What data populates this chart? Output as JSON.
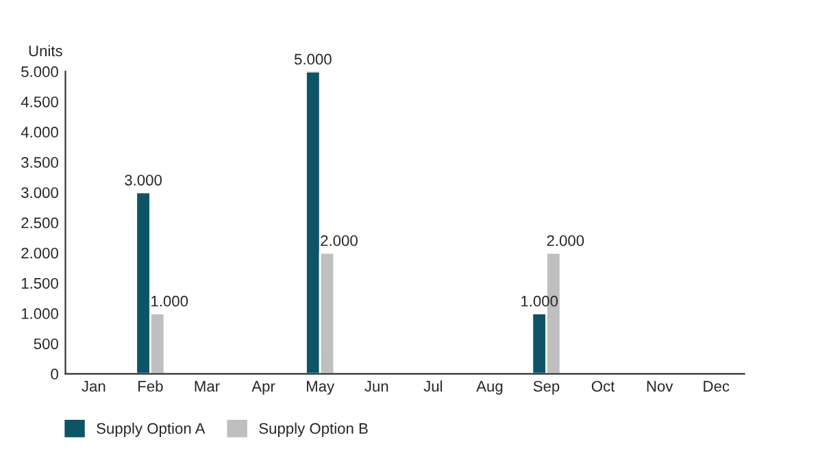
{
  "chart_data": {
    "type": "bar",
    "ylabel": "Units",
    "categories": [
      "Jan",
      "Feb",
      "Mar",
      "Apr",
      "May",
      "Jun",
      "Jul",
      "Aug",
      "Sep",
      "Oct",
      "Nov",
      "Dec"
    ],
    "series": [
      {
        "name": "Supply Option A",
        "color": "#0d5466",
        "values": [
          null,
          3000,
          null,
          null,
          5000,
          null,
          null,
          null,
          1000,
          null,
          null,
          null
        ],
        "value_labels": [
          null,
          "3.000",
          null,
          null,
          "5.000",
          null,
          null,
          null,
          "1.000",
          null,
          null,
          null
        ]
      },
      {
        "name": "Supply Option B",
        "color": "#bfbfbf",
        "values": [
          null,
          1000,
          null,
          null,
          2000,
          null,
          null,
          null,
          2000,
          null,
          null,
          null
        ],
        "value_labels": [
          null,
          "1.000",
          null,
          null,
          "2.000",
          null,
          null,
          null,
          "2.000",
          null,
          null,
          null
        ]
      }
    ],
    "ylim": [
      0,
      5000
    ],
    "yticks": [
      {
        "value": 0,
        "label": "0"
      },
      {
        "value": 500,
        "label": "500"
      },
      {
        "value": 1000,
        "label": "1.000"
      },
      {
        "value": 1500,
        "label": "1.500"
      },
      {
        "value": 2000,
        "label": "2.000"
      },
      {
        "value": 2500,
        "label": "2.500"
      },
      {
        "value": 3000,
        "label": "3.000"
      },
      {
        "value": 3500,
        "label": "3.500"
      },
      {
        "value": 4000,
        "label": "4.000"
      },
      {
        "value": 4500,
        "label": "4.500"
      },
      {
        "value": 5000,
        "label": "5.000"
      }
    ],
    "grid": false,
    "legend": "bottom left"
  }
}
